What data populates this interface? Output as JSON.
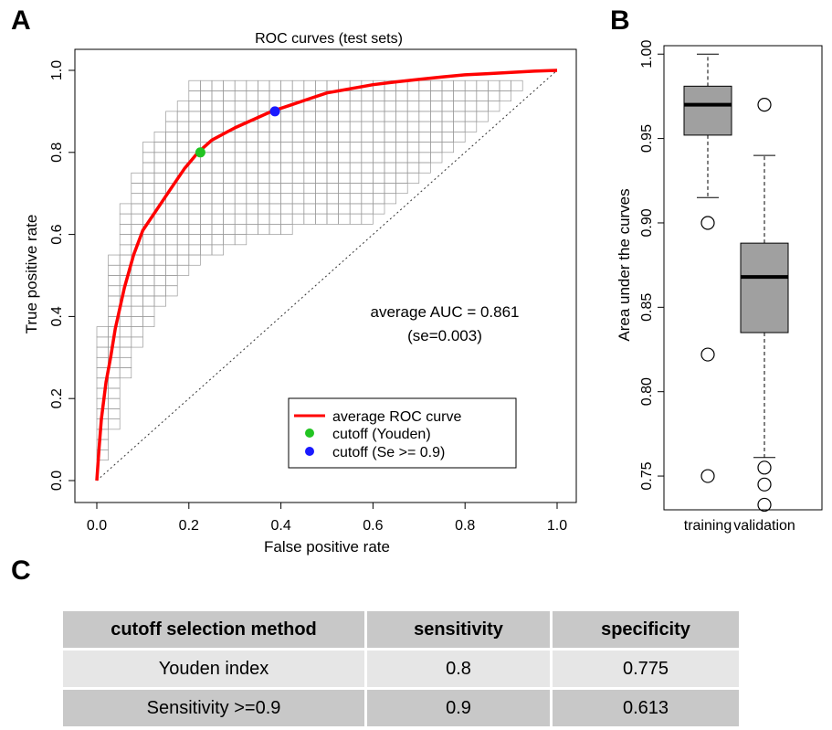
{
  "panels": {
    "a": "A",
    "b": "B",
    "c": "C"
  },
  "chart_data": [
    {
      "type": "line",
      "title": "ROC curves (test sets)",
      "xlabel": "False positive rate",
      "ylabel": "True positive rate",
      "xlim": [
        0,
        1
      ],
      "ylim": [
        0,
        1
      ],
      "xticks": [
        "0.0",
        "0.2",
        "0.4",
        "0.6",
        "0.8",
        "1.0"
      ],
      "yticks": [
        "0.0",
        "0.2",
        "0.4",
        "0.6",
        "0.8",
        "1.0"
      ],
      "series": [
        {
          "name": "average ROC curve",
          "color": "#ff0000",
          "x": [
            0,
            0.005,
            0.01,
            0.02,
            0.03,
            0.04,
            0.05,
            0.06,
            0.08,
            0.1,
            0.13,
            0.16,
            0.19,
            0.22,
            0.25,
            0.3,
            0.35,
            0.38,
            0.42,
            0.46,
            0.5,
            0.55,
            0.6,
            0.65,
            0.7,
            0.75,
            0.8,
            0.85,
            0.9,
            0.95,
            1.0
          ],
          "y": [
            0,
            0.08,
            0.15,
            0.24,
            0.3,
            0.37,
            0.42,
            0.47,
            0.55,
            0.61,
            0.66,
            0.71,
            0.76,
            0.8,
            0.83,
            0.86,
            0.885,
            0.9,
            0.915,
            0.93,
            0.945,
            0.955,
            0.965,
            0.972,
            0.978,
            0.984,
            0.989,
            0.992,
            0.995,
            0.998,
            1.0
          ]
        }
      ],
      "reference_line": {
        "x": [
          0,
          1
        ],
        "y": [
          0,
          1
        ],
        "style": "dotted"
      },
      "background_roc_grid": true,
      "points": [
        {
          "name": "cutoff (Youden)",
          "x": 0.225,
          "y": 0.8,
          "color": "#22c422"
        },
        {
          "name": "cutoff (Se >= 0.9)",
          "x": 0.387,
          "y": 0.9,
          "color": "#1a1aff"
        }
      ],
      "annotation": [
        "average AUC = 0.861",
        "(se=0.003)"
      ],
      "legend": {
        "placement": "bottom-right",
        "entries": [
          "average ROC curve",
          "cutoff (Youden)",
          "cutoff (Se >= 0.9)"
        ]
      }
    },
    {
      "type": "box",
      "ylabel": "Area under the curves",
      "ylim": [
        0.73,
        1.005
      ],
      "yticks": [
        "0.75",
        "0.80",
        "0.85",
        "0.90",
        "0.95",
        "1.00"
      ],
      "categories": [
        "training",
        "validation"
      ],
      "box_color": "#a0a0a0",
      "boxes": [
        {
          "category": "training",
          "whisker_low": 0.915,
          "q1": 0.952,
          "median": 0.97,
          "q3": 0.981,
          "whisker_high": 1.0,
          "outliers": [
            0.9,
            0.822,
            0.75
          ]
        },
        {
          "category": "validation",
          "whisker_low": 0.761,
          "q1": 0.835,
          "median": 0.868,
          "q3": 0.888,
          "whisker_high": 0.94,
          "outliers": [
            0.97,
            0.755,
            0.745,
            0.733
          ]
        }
      ]
    },
    {
      "type": "table",
      "columns": [
        "cutoff selection method",
        "sensitivity",
        "specificity"
      ],
      "rows": [
        [
          "Youden index",
          "0.8",
          "0.775"
        ],
        [
          "Sensitivity >=0.9",
          "0.9",
          "0.613"
        ]
      ]
    }
  ]
}
